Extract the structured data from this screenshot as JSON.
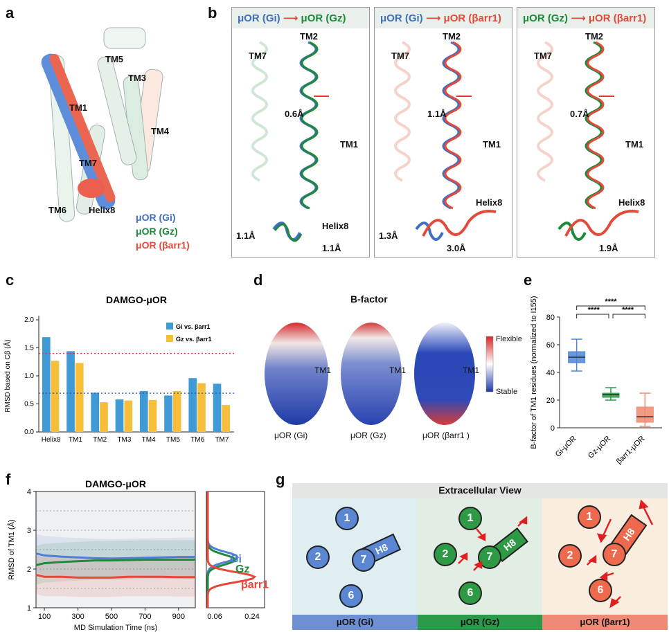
{
  "panels": {
    "a": "a",
    "b": "b",
    "c": "c",
    "d": "d",
    "e": "e",
    "f": "f",
    "g": "g"
  },
  "panel_a": {
    "labels": [
      "TM5",
      "TM3",
      "TM1",
      "TM4",
      "TM7",
      "TM6",
      "Helix8"
    ],
    "legend": [
      "μOR (Gi)",
      "μOR (Gz)",
      "μOR (βarr1)"
    ]
  },
  "panel_b": [
    {
      "title_left": "μOR (Gi)",
      "title_right": "μOR (Gz)",
      "tm7": "TM7",
      "tm2": "TM2",
      "tm1": "TM1",
      "helix8": "Helix8",
      "dist_mid": "0.6Å",
      "dist_a": "1.1Å",
      "dist_b": "1.1Å"
    },
    {
      "title_left": "μOR (Gi)",
      "title_right": "μOR (βarr1)",
      "tm7": "TM7",
      "tm2": "TM2",
      "tm1": "TM1",
      "helix8": "Helix8",
      "dist_mid": "1.1Å",
      "dist_a": "1.3Å",
      "dist_b": "3.0Å"
    },
    {
      "title_left": "μOR (Gz)",
      "title_right": "μOR (βarr1)",
      "tm7": "TM7",
      "tm2": "TM2",
      "tm1": "TM1",
      "helix8": "Helix8",
      "dist_mid": "0.7Å",
      "dist_b": "1.9Å"
    }
  ],
  "panel_d": {
    "title": "B-factor",
    "labels": [
      "μOR (Gi)",
      "μOR (Gz)",
      "μOR (βarr1 )"
    ],
    "tm1": "TM1",
    "flexible": "Flexible",
    "stable": "Stable"
  },
  "panel_g": {
    "title": "Extracellular View",
    "footers": [
      "μOR (Gi)",
      "μOR (Gz)",
      "μOR (βarr1)"
    ],
    "circles": [
      "1",
      "2",
      "7",
      "6"
    ],
    "h8": "H8"
  },
  "chart_data": [
    {
      "panel": "c",
      "type": "bar",
      "title": "DAMGO-μOR",
      "ylabel": "RMSD based on Cβ  (Å)",
      "categories": [
        "Helix8",
        "TM1",
        "TM2",
        "TM3",
        "TM4",
        "TM5",
        "TM6",
        "TM7"
      ],
      "series": [
        {
          "name": "Gi vs. βarr1",
          "color": "#3f9ad6",
          "values": [
            1.69,
            1.44,
            0.7,
            0.58,
            0.73,
            0.65,
            0.96,
            0.86
          ]
        },
        {
          "name": "Gz vs. βarr1",
          "color": "#f7be3a",
          "values": [
            1.27,
            1.23,
            0.53,
            0.56,
            0.57,
            0.73,
            0.87,
            0.48
          ]
        }
      ],
      "ylim": [
        0.0,
        2.0
      ],
      "yticks": [
        "0.0",
        "0.5",
        "1.0",
        "1.5",
        "2.0"
      ],
      "ref_lines": [
        {
          "y": 1.4,
          "color": "#e03b2e"
        },
        {
          "y": 0.69,
          "color": "#2b56b8"
        }
      ]
    },
    {
      "panel": "e",
      "type": "box",
      "ylabel": "B-factor of TM1 residues (normalized to I155)",
      "categories": [
        "Gi-μOR",
        "Gz-μOR",
        "βarr1-μOR"
      ],
      "boxes": [
        {
          "color": "#4f86d6",
          "min": 41,
          "q1": 47,
          "median": 51,
          "q3": 55,
          "max": 64
        },
        {
          "color": "#2e9a45",
          "min": 20,
          "q1": 22,
          "median": 24,
          "q3": 25,
          "max": 29
        },
        {
          "color": "#f08a6e",
          "min": 1,
          "q1": 4,
          "median": 8,
          "q3": 15,
          "max": 25
        }
      ],
      "ylim": [
        0,
        80
      ],
      "yticks": [
        "0",
        "20",
        "40",
        "60",
        "80"
      ],
      "significance": [
        "****",
        "****",
        "****"
      ]
    },
    {
      "panel": "f",
      "type": "line",
      "title": "DAMGO-μOR",
      "xlabel": "MD Simulation Time (ns)",
      "ylabel": "RMSD of TM1 (Å)",
      "xlim": [
        50,
        1000
      ],
      "ylim": [
        1,
        4
      ],
      "xticks": [
        "100",
        "300",
        "500",
        "700",
        "900"
      ],
      "yticks": [
        "1",
        "2",
        "3",
        "4"
      ],
      "series": [
        {
          "name": "Gi",
          "color": "#4f7fd0",
          "x": [
            50,
            100,
            200,
            300,
            400,
            500,
            600,
            700,
            800,
            900,
            1000
          ],
          "values": [
            2.4,
            2.35,
            2.32,
            2.3,
            2.28,
            2.27,
            2.28,
            2.29,
            2.3,
            2.31,
            2.31
          ]
        },
        {
          "name": "Gz",
          "color": "#1f8a3e",
          "x": [
            50,
            100,
            200,
            300,
            400,
            500,
            600,
            700,
            800,
            900,
            1000
          ],
          "values": [
            2.1,
            2.15,
            2.18,
            2.2,
            2.22,
            2.22,
            2.23,
            2.24,
            2.24,
            2.24,
            2.24
          ]
        },
        {
          "name": "βarr1",
          "color": "#e8473a",
          "x": [
            50,
            100,
            200,
            300,
            400,
            500,
            600,
            700,
            800,
            900,
            1000
          ],
          "values": [
            1.85,
            1.8,
            1.8,
            1.78,
            1.78,
            1.78,
            1.8,
            1.8,
            1.8,
            1.79,
            1.79
          ]
        }
      ],
      "density_xticks": [
        "0.06",
        "0.24"
      ]
    }
  ]
}
